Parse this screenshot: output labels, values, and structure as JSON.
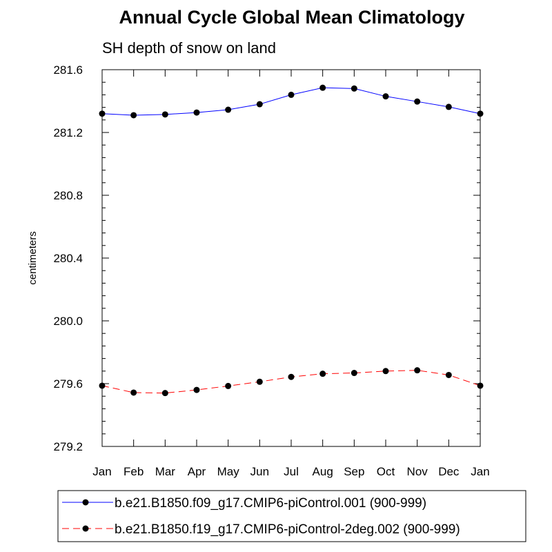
{
  "title": "Annual Cycle Global Mean Climatology",
  "subtitle": "SH depth of snow on land",
  "chart_data": {
    "type": "line",
    "title": "Annual Cycle Global Mean Climatology",
    "subtitle": "SH depth of snow on land",
    "xlabel": "",
    "ylabel": "centimeters",
    "categories": [
      "Jan",
      "Feb",
      "Mar",
      "Apr",
      "May",
      "Jun",
      "Jul",
      "Aug",
      "Sep",
      "Oct",
      "Nov",
      "Dec",
      "Jan"
    ],
    "ylim": [
      279.2,
      281.6
    ],
    "yticks": [
      "281.6",
      "281.2",
      "280.8",
      "280.4",
      "280.0",
      "279.6",
      "279.2"
    ],
    "series": [
      {
        "name": "b.e21.B1850.f09_g17.CMIP6-piControl.001 (900-999)",
        "color": "#0000ff",
        "dash": "solid",
        "values": [
          281.32,
          281.31,
          281.315,
          281.327,
          281.345,
          281.38,
          281.44,
          281.485,
          281.48,
          281.43,
          281.397,
          281.363,
          281.32
        ]
      },
      {
        "name": "b.e21.B1850.f19_g17.CMIP6-piControl-2deg.002 (900-999)",
        "color": "#ff0000",
        "dash": "dashed",
        "values": [
          279.587,
          279.543,
          279.54,
          279.56,
          279.585,
          279.612,
          279.643,
          279.663,
          279.668,
          279.68,
          279.685,
          279.655,
          279.587
        ]
      }
    ],
    "legend_position": "bottom"
  }
}
